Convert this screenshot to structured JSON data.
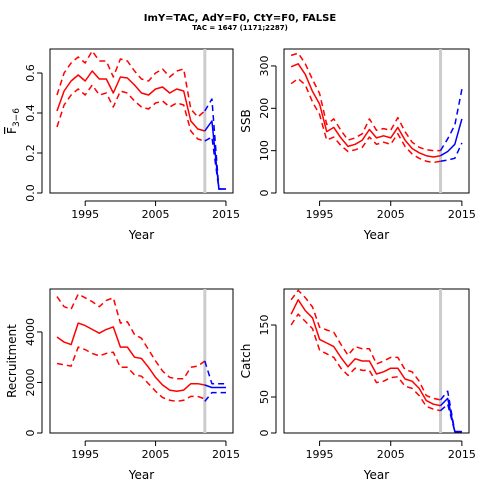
{
  "title": "ImY=TAC, AdY=F0, CtY=F0, FALSE",
  "subtitle": "TAC = 1647 (1171;2287)",
  "colors": {
    "history": "#ff0000",
    "projection": "#0000ff",
    "marker": "#cccccc"
  },
  "chart_data": [
    {
      "id": "fbar",
      "type": "line",
      "xlabel": "Year",
      "ylabel": "F3-6",
      "ylabel_main": "F",
      "ylabel_sub": "3−6",
      "xlim": [
        1990,
        2016
      ],
      "ylim": [
        0,
        0.72
      ],
      "xticks": [
        1995,
        2005,
        2015
      ],
      "yticks": [
        0.0,
        0.2,
        0.4,
        0.6
      ],
      "ytick_labels": [
        "0.0",
        "0.2",
        "0.4",
        "0.6"
      ],
      "vline_x": 2012,
      "history": {
        "x": [
          1991,
          1992,
          1993,
          1994,
          1995,
          1996,
          1997,
          1998,
          1999,
          2000,
          2001,
          2002,
          2003,
          2004,
          2005,
          2006,
          2007,
          2008,
          2009,
          2010,
          2011,
          2012
        ],
        "median": [
          0.41,
          0.51,
          0.56,
          0.59,
          0.56,
          0.61,
          0.57,
          0.57,
          0.5,
          0.58,
          0.575,
          0.54,
          0.5,
          0.49,
          0.52,
          0.53,
          0.5,
          0.52,
          0.51,
          0.36,
          0.32,
          0.31
        ],
        "lower": [
          0.33,
          0.44,
          0.49,
          0.52,
          0.49,
          0.54,
          0.49,
          0.5,
          0.43,
          0.51,
          0.5,
          0.46,
          0.43,
          0.42,
          0.45,
          0.46,
          0.43,
          0.45,
          0.44,
          0.31,
          0.27,
          0.26
        ],
        "upper": [
          0.49,
          0.6,
          0.65,
          0.68,
          0.65,
          0.71,
          0.66,
          0.66,
          0.58,
          0.67,
          0.66,
          0.61,
          0.57,
          0.56,
          0.6,
          0.62,
          0.58,
          0.61,
          0.62,
          0.42,
          0.38,
          0.41
        ]
      },
      "projection": {
        "x": [
          2012,
          2013,
          2014,
          2015
        ],
        "median": [
          0.31,
          0.36,
          0.02,
          0.02
        ],
        "lower": [
          0.26,
          0.28,
          0.02,
          0.02
        ],
        "upper": [
          0.41,
          0.47,
          0.02,
          0.02
        ]
      }
    },
    {
      "id": "ssb",
      "type": "line",
      "xlabel": "Year",
      "ylabel": "SSB",
      "xlim": [
        1990,
        2016
      ],
      "ylim": [
        0,
        340
      ],
      "xticks": [
        1995,
        2005,
        2015
      ],
      "yticks": [
        0,
        100,
        200,
        300
      ],
      "ytick_labels": [
        "0",
        "100",
        "200",
        "300"
      ],
      "vline_x": 2012,
      "history": {
        "x": [
          1991,
          1992,
          1993,
          1994,
          1995,
          1996,
          1997,
          1998,
          1999,
          2000,
          2001,
          2002,
          2003,
          2004,
          2005,
          2006,
          2007,
          2008,
          2009,
          2010,
          2011,
          2012
        ],
        "median": [
          298,
          305,
          280,
          240,
          210,
          145,
          155,
          130,
          110,
          115,
          125,
          150,
          130,
          135,
          130,
          155,
          125,
          105,
          95,
          88,
          85,
          88
        ],
        "lower": [
          258,
          270,
          255,
          215,
          185,
          125,
          132,
          112,
          98,
          102,
          108,
          132,
          115,
          120,
          115,
          140,
          110,
          92,
          82,
          75,
          72,
          75
        ],
        "upper": [
          325,
          330,
          305,
          268,
          235,
          162,
          175,
          148,
          125,
          130,
          140,
          175,
          148,
          152,
          148,
          178,
          145,
          120,
          108,
          102,
          100,
          100
        ]
      },
      "projection": {
        "x": [
          2012,
          2013,
          2014,
          2015
        ],
        "median": [
          88,
          98,
          115,
          175
        ],
        "lower": [
          75,
          78,
          82,
          118
        ],
        "upper": [
          100,
          128,
          160,
          245
        ]
      }
    },
    {
      "id": "recruitment",
      "type": "line",
      "xlabel": "Year",
      "ylabel": "Recruitment",
      "xlim": [
        1990,
        2016
      ],
      "ylim": [
        0,
        5700
      ],
      "xticks": [
        1995,
        2005,
        2015
      ],
      "yticks": [
        0,
        2000,
        4000
      ],
      "ytick_labels": [
        "0",
        "2000",
        "4000"
      ],
      "vline_x": 2012,
      "history": {
        "x": [
          1991,
          1992,
          1993,
          1994,
          1995,
          1996,
          1997,
          1998,
          1999,
          2000,
          2001,
          2002,
          2003,
          2004,
          2005,
          2006,
          2007,
          2008,
          2009,
          2010,
          2011,
          2012
        ],
        "median": [
          3800,
          3600,
          3500,
          4350,
          4250,
          4100,
          3950,
          4100,
          4200,
          3400,
          3400,
          3000,
          2950,
          2600,
          2200,
          1900,
          1700,
          1650,
          1700,
          1950,
          1950,
          1900
        ],
        "lower": [
          2750,
          2700,
          2650,
          3400,
          3300,
          3150,
          3050,
          3150,
          3200,
          2600,
          2600,
          2300,
          2250,
          1950,
          1650,
          1400,
          1300,
          1250,
          1300,
          1450,
          1450,
          1350
        ],
        "upper": [
          5400,
          5000,
          4900,
          5500,
          5350,
          5200,
          5000,
          5250,
          5350,
          4350,
          4400,
          3900,
          3750,
          3300,
          2850,
          2450,
          2200,
          2150,
          2150,
          2600,
          2650,
          2850
        ]
      },
      "projection": {
        "x": [
          2012,
          2013,
          2014,
          2015
        ],
        "median": [
          1900,
          1800,
          1800,
          1800
        ],
        "lower": [
          1250,
          1600,
          1600,
          1600
        ],
        "upper": [
          2850,
          1950,
          1950,
          1950
        ]
      }
    },
    {
      "id": "catch",
      "type": "line",
      "xlabel": "Year",
      "ylabel": "Catch",
      "xlim": [
        1990,
        2016
      ],
      "ylim": [
        0,
        200
      ],
      "xticks": [
        1995,
        2005,
        2015
      ],
      "yticks": [
        0,
        50,
        150
      ],
      "ytick_labels": [
        "0",
        "50",
        "150"
      ],
      "vline_x": 2012,
      "history": {
        "x": [
          1991,
          1992,
          1993,
          1994,
          1995,
          1996,
          1997,
          1998,
          1999,
          2000,
          2001,
          2002,
          2003,
          2004,
          2005,
          2006,
          2007,
          2008,
          2009,
          2010,
          2011,
          2012
        ],
        "median": [
          165,
          185,
          170,
          160,
          130,
          125,
          120,
          105,
          92,
          103,
          100,
          100,
          82,
          85,
          90,
          90,
          75,
          72,
          62,
          45,
          40,
          38
        ],
        "lower": [
          150,
          165,
          155,
          145,
          115,
          110,
          105,
          90,
          80,
          90,
          87,
          87,
          70,
          72,
          77,
          78,
          65,
          62,
          52,
          37,
          33,
          31
        ],
        "upper": [
          185,
          198,
          188,
          175,
          147,
          143,
          140,
          123,
          108,
          120,
          117,
          117,
          96,
          100,
          105,
          105,
          88,
          85,
          72,
          52,
          48,
          46
        ]
      },
      "projection": {
        "x": [
          2012,
          2013,
          2014,
          2015
        ],
        "median": [
          38,
          48,
          2,
          2
        ],
        "lower": [
          31,
          40,
          2,
          2
        ],
        "upper": [
          46,
          58,
          2,
          2
        ]
      }
    }
  ]
}
